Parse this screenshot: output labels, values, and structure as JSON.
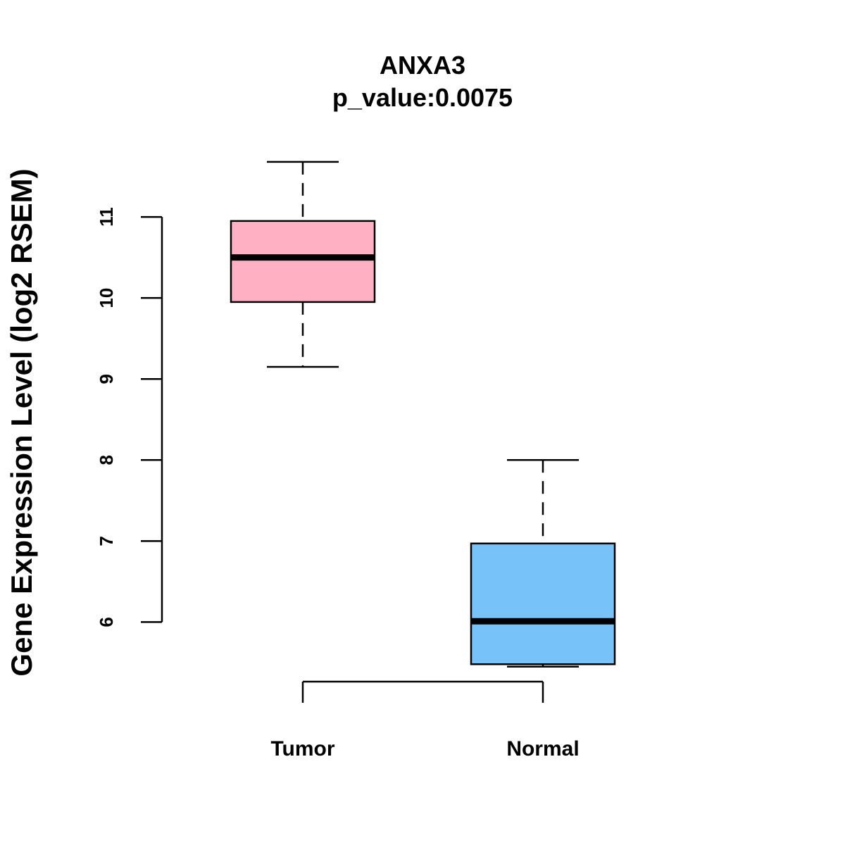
{
  "chart_data": {
    "type": "boxplot",
    "title": "ANXA3",
    "subtitle": "p_value:0.0075",
    "xlabel": "",
    "ylabel": "Gene Expression Level (log2 RSEM)",
    "ylim": [
      4.9,
      12.2
    ],
    "yticks": [
      6,
      7,
      8,
      9,
      10,
      11
    ],
    "categories": [
      "Tumor",
      "Normal"
    ],
    "boxes": [
      {
        "name": "Tumor",
        "whisker_low": 9.15,
        "q1": 9.95,
        "median": 10.5,
        "q3": 10.95,
        "whisker_high": 11.68,
        "color": "#FFB1C3"
      },
      {
        "name": "Normal",
        "whisker_low": 5.45,
        "q1": 5.48,
        "median": 6.01,
        "q3": 6.97,
        "whisker_high": 8.0,
        "color": "#78C2FA"
      }
    ],
    "grid": false
  }
}
